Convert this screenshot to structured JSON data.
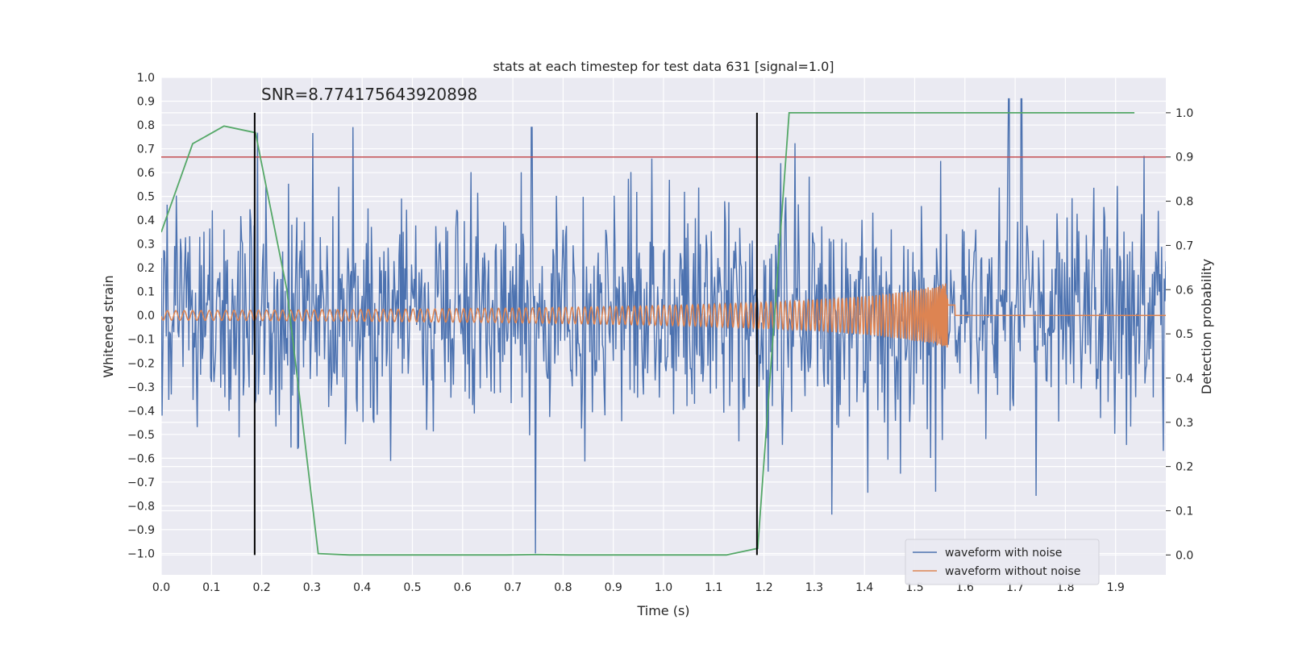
{
  "chart_data": {
    "type": "line",
    "title": "stats at each timestep for test data 631 [signal=1.0]",
    "xlabel": "Time (s)",
    "ylabel_left": "Whitened strain",
    "ylabel_right": "Detection probability",
    "xlim": [
      0.0,
      2.0
    ],
    "ylim_left": [
      -1.09,
      1.0
    ],
    "ylim_right": [
      -0.045,
      1.08
    ],
    "x_ticks": [
      "0.0",
      "0.1",
      "0.2",
      "0.3",
      "0.4",
      "0.5",
      "0.6",
      "0.7",
      "0.8",
      "0.9",
      "1.0",
      "1.1",
      "1.2",
      "1.3",
      "1.4",
      "1.5",
      "1.6",
      "1.7",
      "1.8",
      "1.9"
    ],
    "y_ticks_left": [
      "1.0",
      "0.9",
      "0.8",
      "0.7",
      "0.6",
      "0.5",
      "0.4",
      "0.3",
      "0.2",
      "0.1",
      "0.0",
      "−0.1",
      "−0.2",
      "−0.3",
      "−0.4",
      "−0.5",
      "−0.6",
      "−0.7",
      "−0.8",
      "−0.9",
      "−1.0"
    ],
    "y_ticks_right": [
      "1.0",
      "0.9",
      "0.8",
      "0.7",
      "0.6",
      "0.5",
      "0.4",
      "0.3",
      "0.2",
      "0.1",
      "0.0"
    ],
    "annotation": "SNR=8.774175643920898",
    "grid": true,
    "legend_position": "bottom-right",
    "threshold": {
      "axis": "right",
      "value": 0.9,
      "color": "#c44e52"
    },
    "vertical_markers": [
      0.186,
      1.186
    ],
    "series": [
      {
        "name": "waveform with noise",
        "axis": "left",
        "color": "#4c72b0",
        "kind": "noise",
        "samples": 1200,
        "amplitude_sd": 0.24
      },
      {
        "name": "waveform without noise",
        "axis": "left",
        "color": "#dd8452",
        "kind": "chirp",
        "merger_time": 1.57
      },
      {
        "axis": "right",
        "color": "#55a868",
        "x": [
          0.0,
          0.0625,
          0.125,
          0.1875,
          0.25,
          0.3125,
          0.375,
          0.4375,
          0.5,
          0.5625,
          0.625,
          0.6875,
          0.75,
          0.8125,
          0.875,
          0.9375,
          1.0,
          1.0625,
          1.125,
          1.1875,
          1.25,
          1.3125,
          1.375,
          1.4375,
          1.5,
          1.5625,
          1.625,
          1.6875,
          1.75,
          1.8125,
          1.875,
          1.9375
        ],
        "y": [
          0.73,
          0.93,
          0.97,
          0.955,
          0.6,
          0.003,
          0.0,
          0.0,
          0.0,
          0.0,
          0.0,
          0.0,
          0.001,
          0.0,
          0.0,
          0.0,
          0.0,
          0.0,
          0.0,
          0.015,
          1.0,
          1.0,
          1.0,
          1.0,
          1.0,
          1.0,
          1.0,
          1.0,
          1.0,
          1.0,
          1.0,
          1.0
        ]
      }
    ]
  }
}
